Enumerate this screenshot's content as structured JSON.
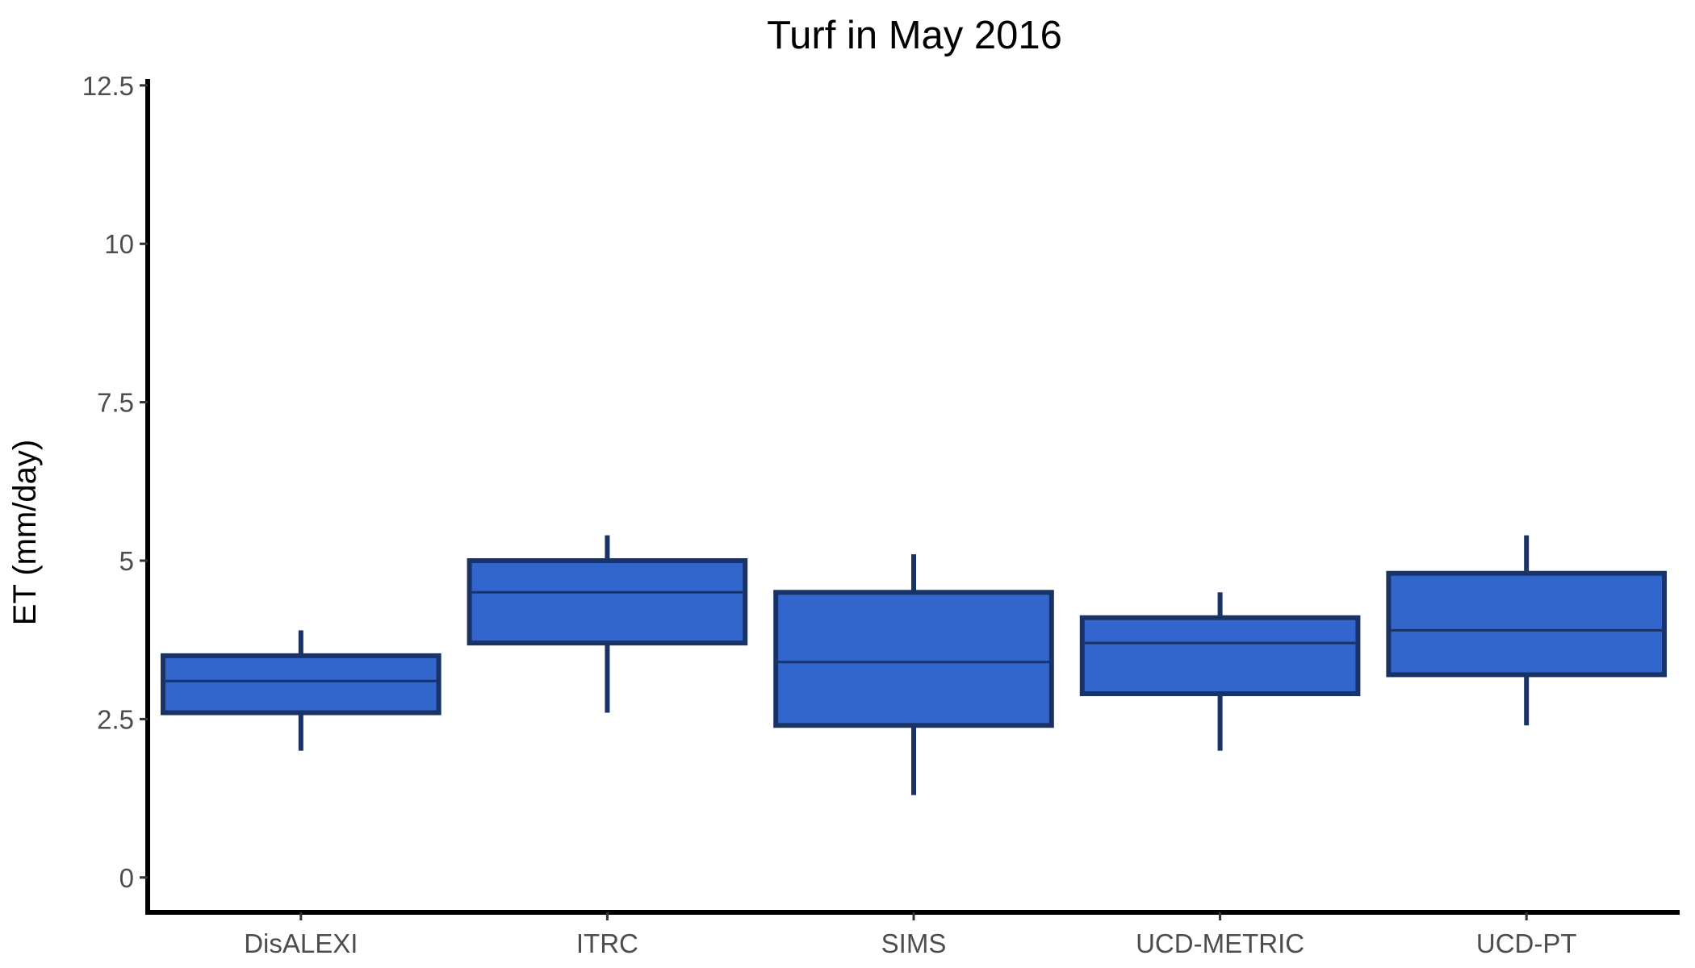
{
  "chart_data": {
    "type": "boxplot",
    "title": "Turf in May 2016",
    "xlabel": "",
    "ylabel": "ET (mm/day)",
    "ylim": [
      -0.55,
      12.6
    ],
    "yticks": [
      0,
      2.5,
      5,
      7.5,
      10,
      12.5
    ],
    "ytick_labels": [
      "0",
      "2.5",
      "5",
      "7.5",
      "10",
      "12.5"
    ],
    "categories": [
      "DisALEXI",
      "ITRC",
      "SIMS",
      "UCD-METRIC",
      "UCD-PT"
    ],
    "boxes": [
      {
        "category": "DisALEXI",
        "min": 2.0,
        "q1": 2.6,
        "median": 3.1,
        "q3": 3.5,
        "max": 3.9
      },
      {
        "category": "ITRC",
        "min": 2.6,
        "q1": 3.7,
        "median": 4.5,
        "q3": 5.0,
        "max": 5.4
      },
      {
        "category": "SIMS",
        "min": 1.3,
        "q1": 2.4,
        "median": 3.4,
        "q3": 4.5,
        "max": 5.1
      },
      {
        "category": "UCD-METRIC",
        "min": 2.0,
        "q1": 2.9,
        "median": 3.7,
        "q3": 4.1,
        "max": 4.5
      },
      {
        "category": "UCD-PT",
        "min": 2.4,
        "q1": 3.2,
        "median": 3.9,
        "q3": 4.8,
        "max": 5.4
      }
    ],
    "grid": false,
    "legend": "none",
    "colors": {
      "box_fill": "#3366cc",
      "box_stroke": "#1a3366"
    }
  }
}
